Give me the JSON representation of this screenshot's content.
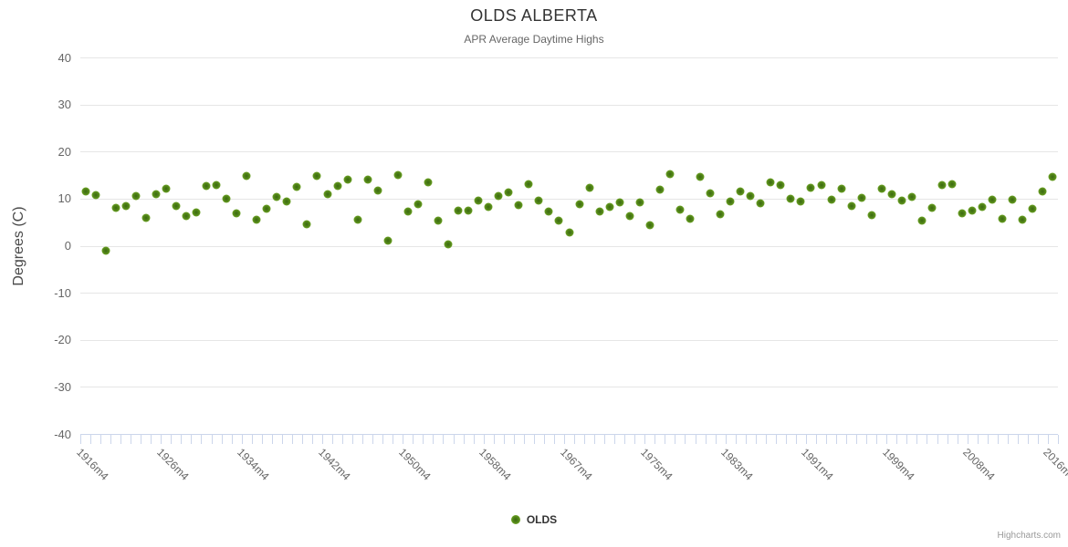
{
  "credit": "Highcharts.com",
  "colors": {
    "marker_outer": "#86c230",
    "marker_inner": "#3a6a10",
    "grid": "#e6e6e6",
    "axis_tick": "#ccd6eb",
    "title": "#333333",
    "subtitle": "#666666",
    "axis_label": "#666666"
  },
  "chart_data": {
    "type": "scatter",
    "title": "OLDS ALBERTA",
    "subtitle": "APR Average Daytime Highs",
    "ylabel": "Degrees (C)",
    "xlabel": "",
    "ylim": [
      -40,
      40
    ],
    "y_ticks": [
      40,
      30,
      20,
      10,
      0,
      -10,
      -20,
      -30,
      -40
    ],
    "grid": "horizontal",
    "legend_position": "bottom",
    "x_tick_labels": [
      "1916m4",
      "1926m4",
      "1934m4",
      "1942m4",
      "1950m4",
      "1958m4",
      "1967m4",
      "1975m4",
      "1983m4",
      "1991m4",
      "1999m4",
      "2008m4",
      "2016m4"
    ],
    "x_label_step": 8,
    "series": [
      {
        "name": "OLDS",
        "color": "#86c230",
        "values": [
          11.5,
          10.8,
          -1.1,
          8.0,
          8.4,
          10.5,
          6.0,
          11.0,
          12.1,
          8.5,
          6.2,
          7.1,
          12.7,
          12.8,
          9.9,
          6.9,
          14.8,
          5.6,
          7.8,
          10.4,
          9.4,
          12.4,
          4.5,
          14.8,
          10.9,
          12.7,
          14.0,
          5.6,
          14.0,
          11.7,
          1.0,
          15.0,
          7.2,
          8.9,
          13.4,
          5.4,
          0.3,
          7.4,
          7.5,
          9.6,
          8.2,
          10.6,
          11.3,
          8.6,
          13.1,
          9.6,
          7.3,
          5.3,
          2.9,
          8.8,
          12.3,
          7.3,
          8.2,
          9.2,
          6.2,
          9.2,
          4.3,
          12.0,
          15.3,
          7.7,
          5.7,
          14.6,
          11.2,
          6.7,
          9.4,
          11.6,
          10.5,
          9.0,
          13.5,
          12.8,
          10.0,
          9.4,
          12.3,
          12.9,
          9.8,
          12.2,
          8.4,
          10.2,
          6.5,
          12.2,
          11.0,
          9.5,
          10.4,
          5.4,
          8.0,
          12.8,
          13.0,
          6.9,
          7.5,
          8.3,
          9.8,
          5.8,
          9.8,
          5.5,
          7.8,
          11.6,
          14.6
        ]
      }
    ]
  }
}
